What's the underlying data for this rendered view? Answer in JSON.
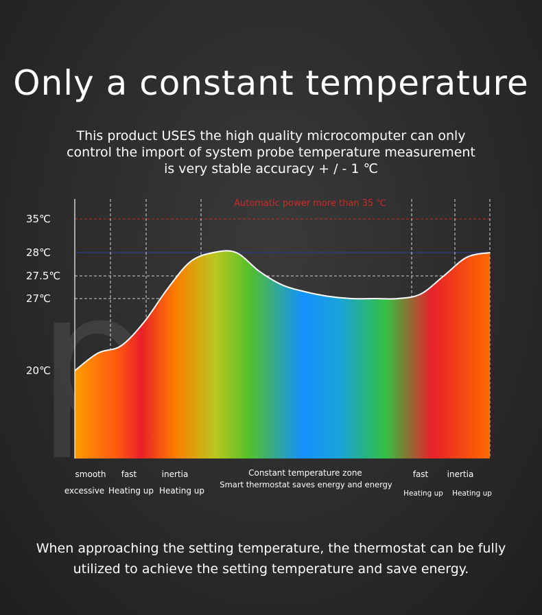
{
  "header": {
    "title": "Only a constant temperature",
    "subtitle_lines": [
      "This product USES the high quality microcomputer can only",
      "control the import of system probe temperature measurement",
      "is very stable accuracy + / - 1 ℃"
    ]
  },
  "chart_data": {
    "type": "area",
    "watermark": "pscc",
    "y_tick_labels": [
      "35℃",
      "28℃",
      "27.5℃",
      "27℃",
      "20℃"
    ],
    "y_ticks": [
      35,
      28,
      27.5,
      27,
      20
    ],
    "reference_lines": [
      {
        "value": 35,
        "label": "Automatic power more than 35 ℃",
        "color": "#cc2a2a"
      },
      {
        "value": 28,
        "color": "#2b3f9e"
      },
      {
        "value": 27.5,
        "color": "#d0d0d0"
      },
      {
        "value": 27,
        "color": "#d0d0d0"
      }
    ],
    "curve": {
      "x": [
        0,
        1,
        2,
        3,
        4,
        5,
        6,
        7,
        8,
        9,
        10,
        11,
        12,
        13,
        14,
        15,
        16,
        17,
        18
      ],
      "y": [
        20,
        21.7,
        22.4,
        24.7,
        27.2,
        27.8,
        28,
        28,
        27.6,
        27.3,
        27.15,
        27.05,
        27,
        27,
        27,
        27.1,
        27.5,
        27.9,
        28
      ]
    },
    "colors": {
      "gradient": [
        "#ff9a00",
        "#e8202a",
        "#ff7a00",
        "#7bc62a",
        "#1490ff",
        "#33c040",
        "#e8202a",
        "#ff6a00"
      ]
    },
    "zones": [
      {
        "line1": "smooth",
        "line2": "excessive"
      },
      {
        "line1": "fast",
        "line2": "Heating up"
      },
      {
        "line1": "inertia",
        "line2": "Heating up"
      },
      {
        "line1": "Constant temperature zone",
        "line2": "Smart thermostat saves energy and energy"
      },
      {
        "line1": "fast",
        "line2": "Heating up"
      },
      {
        "line1": "inertia",
        "line2": "Heating up"
      }
    ]
  },
  "footer": {
    "lines": [
      "When approaching the setting temperature, the thermostat can be fully",
      "utilized to achieve the setting temperature and save energy."
    ]
  }
}
